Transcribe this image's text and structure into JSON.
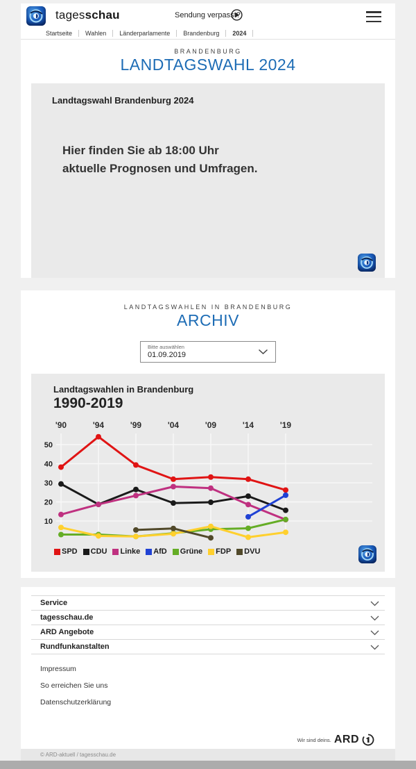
{
  "header": {
    "brand_regular": "tages",
    "brand_bold": "schau",
    "missed_show": "Sendung verpasst?",
    "breadcrumb": [
      "Startseite",
      "Wahlen",
      "Länderparlamente",
      "Brandenburg",
      "2024"
    ]
  },
  "icons": {
    "play_icon": "▶",
    "menu_icon": "☰",
    "chevron_down_icon": "⌄"
  },
  "election_section": {
    "kicker": "BRANDENBURG",
    "title": "LANDTAGSWAHL 2024",
    "card": {
      "title": "Landtagswahl Brandenburg 2024",
      "message_line1": "Hier finden Sie ab 18:00 Uhr",
      "message_line2": "aktuelle Prognosen und Umfragen."
    }
  },
  "archive_section": {
    "kicker": "LANDTAGSWAHLEN IN BRANDENBURG",
    "title": "ARCHIV",
    "dropdown": {
      "label": "Bitte auswählen",
      "value": "01.09.2019"
    }
  },
  "chart_data": {
    "type": "line",
    "title": "Landtagswahlen in Brandenburg",
    "subtitle": "1990-2019",
    "categories": [
      "'90",
      "'94",
      "'99",
      "'04",
      "'09",
      "'14",
      "'19"
    ],
    "unit": "percent",
    "ylim": [
      0,
      60
    ],
    "yticks": [
      10,
      20,
      30,
      40,
      50
    ],
    "grid": true,
    "legend_position": "bottom",
    "series": [
      {
        "name": "SPD",
        "color": "#e01414",
        "values": [
          38.2,
          54.1,
          39.3,
          31.9,
          33.0,
          31.9,
          26.2
        ]
      },
      {
        "name": "CDU",
        "color": "#1a1a1a",
        "values": [
          29.4,
          18.7,
          26.5,
          19.4,
          19.8,
          23.0,
          15.6
        ]
      },
      {
        "name": "Linke",
        "color": "#bf3180",
        "values": [
          13.4,
          18.7,
          23.3,
          28.0,
          27.2,
          18.6,
          10.7
        ]
      },
      {
        "name": "AfD",
        "color": "#2042d4",
        "values": [
          null,
          null,
          null,
          null,
          null,
          12.2,
          23.5
        ]
      },
      {
        "name": "Grüne",
        "color": "#65ad26",
        "values": [
          2.9,
          2.9,
          1.9,
          3.6,
          5.7,
          6.2,
          10.8
        ]
      },
      {
        "name": "FDP",
        "color": "#ffd02e",
        "values": [
          6.6,
          2.2,
          1.9,
          3.3,
          7.2,
          1.5,
          4.1
        ]
      },
      {
        "name": "DVU",
        "color": "#51492a",
        "values": [
          null,
          null,
          5.3,
          6.1,
          1.2,
          null,
          null
        ]
      }
    ]
  },
  "footer": {
    "accordion": [
      {
        "label": "Service"
      },
      {
        "label": "tagesschau.de"
      },
      {
        "label": "ARD Angebote"
      },
      {
        "label": "Rundfunkanstalten"
      }
    ],
    "links": [
      "Impressum",
      "So erreichen Sie uns",
      "Datenschutzerklärung"
    ],
    "ard_claim": "Wir sind deins.",
    "ard_brand": "ARD",
    "copyright": "© ARD-aktuell / tagesschau.de"
  },
  "colors": {
    "accent_blue": "#1d6cb5",
    "page_background": "#f0f0f0",
    "card_background": "#eaeaea"
  }
}
